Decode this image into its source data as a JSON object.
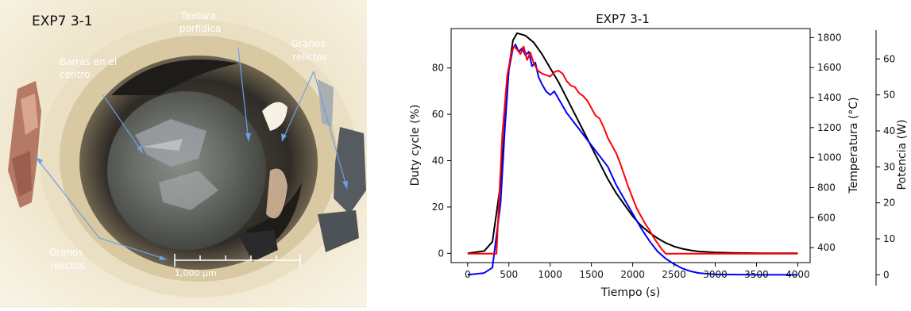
{
  "photo": {
    "title": "EXP7 3-1",
    "labels": {
      "textura": "Textura porfídica",
      "barras": "Barras en el centro",
      "granos_top": "Granos relictos",
      "granos_bottom": "Granos relictos"
    },
    "scale_bar": "1,000 μm"
  },
  "colors": {
    "duty": "#000000",
    "temperature": "#ff0000",
    "power": "#0000ff",
    "annotation_text": "#ffffff",
    "annotation_arrow": "#6aa0e6"
  },
  "chart_data": {
    "type": "line",
    "title": "EXP7 3-1",
    "xlabel": "Tiempo (s)",
    "ylabel": "Duty cycle (%)",
    "ylabel_right": "Temperatura (°C)",
    "ylabel_right2": "Potencia (W)",
    "xlim": [
      -200,
      4150
    ],
    "ylim": [
      -4,
      97
    ],
    "ylim_right": [
      300,
      1860
    ],
    "ylim_right2": [
      -3,
      68
    ],
    "x_ticks": [
      0,
      500,
      1000,
      1500,
      2000,
      2500,
      3000,
      3500,
      4000
    ],
    "x_tick_labels": [
      "0",
      "500",
      "1000",
      "1500",
      "2000",
      "2500",
      "3000",
      "3500",
      "4000"
    ],
    "y_ticks": [
      0,
      20,
      40,
      60,
      80
    ],
    "y_tick_labels": [
      "0",
      "20",
      "40",
      "60",
      "80"
    ],
    "y_right_ticks": [
      400,
      600,
      800,
      1000,
      1200,
      1400,
      1600,
      1800
    ],
    "y_right_tick_labels": [
      "400",
      "600",
      "800",
      "1000",
      "1200",
      "1400",
      "1600",
      "1800"
    ],
    "y_right2_ticks": [
      0,
      10,
      20,
      30,
      40,
      50,
      60
    ],
    "y_right2_tick_labels": [
      "0",
      "10",
      "20",
      "30",
      "40",
      "50",
      "60"
    ],
    "grid": false,
    "series": [
      {
        "axis": "left",
        "x": [
          0,
          200,
          300,
          400,
          450,
          500,
          550,
          600,
          700,
          800,
          900,
          1000,
          1100,
          1200,
          1300,
          1400,
          1500,
          1600,
          1700,
          1800,
          1900,
          2000,
          2100,
          2200,
          2300,
          2400,
          2500,
          2600,
          2700,
          2800,
          3000,
          3200,
          3400,
          3600,
          3800,
          4000
        ],
        "y": [
          0,
          1,
          5,
          30,
          55,
          80,
          92,
          95,
          94,
          91,
          86,
          80,
          74,
          67,
          60,
          53,
          46,
          39,
          32,
          26,
          21,
          16,
          12,
          9,
          6.5,
          4.5,
          3,
          2,
          1.3,
          0.8,
          0.4,
          0.2,
          0.1,
          0.05,
          0,
          0
        ]
      },
      {
        "axis": "right",
        "x": [
          0,
          300,
          350,
          420,
          480,
          530,
          560,
          600,
          640,
          680,
          720,
          760,
          800,
          850,
          900,
          950,
          1000,
          1050,
          1100,
          1150,
          1200,
          1250,
          1300,
          1350,
          1400,
          1450,
          1500,
          1550,
          1600,
          1650,
          1700,
          1750,
          1800,
          1850,
          1900,
          1950,
          2000,
          2050,
          2100,
          2150,
          2200,
          2250,
          2300,
          2350,
          2400,
          2500,
          4000
        ],
        "y": [
          360,
          360,
          360,
          1150,
          1550,
          1700,
          1740,
          1720,
          1690,
          1740,
          1650,
          1700,
          1630,
          1580,
          1560,
          1550,
          1540,
          1570,
          1580,
          1560,
          1510,
          1480,
          1470,
          1430,
          1410,
          1380,
          1330,
          1280,
          1260,
          1200,
          1130,
          1080,
          1030,
          960,
          880,
          800,
          730,
          660,
          610,
          560,
          520,
          470,
          430,
          390,
          360,
          360,
          360
        ]
      },
      {
        "axis": "right2",
        "x": [
          0,
          200,
          300,
          400,
          450,
          500,
          550,
          580,
          620,
          660,
          700,
          740,
          780,
          820,
          860,
          900,
          950,
          1000,
          1050,
          1100,
          1150,
          1200,
          1300,
          1400,
          1500,
          1600,
          1700,
          1800,
          1900,
          2000,
          2100,
          2200,
          2300,
          2400,
          2500,
          2600,
          2700,
          2800,
          3000,
          3500,
          4000
        ],
        "y": [
          0,
          0.5,
          2,
          20,
          40,
          57,
          63,
          64,
          62,
          63,
          61,
          62,
          58,
          59,
          55,
          53,
          51,
          50,
          51,
          49,
          47,
          45,
          42,
          39,
          36,
          33,
          30,
          25,
          21,
          17,
          13,
          9.5,
          6.5,
          4.5,
          3,
          1.8,
          1,
          0.5,
          0.1,
          0,
          0
        ]
      }
    ]
  }
}
